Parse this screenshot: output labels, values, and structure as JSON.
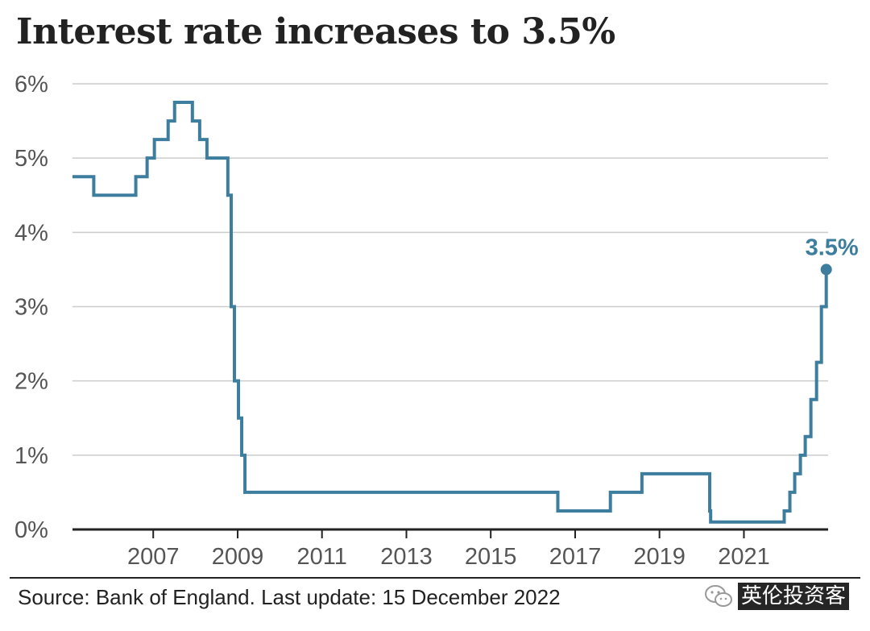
{
  "title": "Interest rate increases to 3.5%",
  "source": "Source: Bank of England. Last update: 15 December 2022",
  "watermark": "英伦投资客",
  "colors": {
    "line": "#3d7d9e",
    "grid": "#cccccc",
    "axis": "#222222",
    "tick_text": "#555555"
  },
  "chart_data": {
    "type": "line",
    "title": "Interest rate increases to 3.5%",
    "xlabel": "",
    "ylabel": "",
    "step": true,
    "xlim": [
      "2005-02-01",
      "2022-12-31"
    ],
    "ylim": [
      0,
      6
    ],
    "y_ticks": [
      0,
      1,
      2,
      3,
      4,
      5,
      6
    ],
    "y_tick_labels": [
      "0%",
      "1%",
      "2%",
      "3%",
      "4%",
      "5%",
      "6%"
    ],
    "x_ticks": [
      "2007-01-01",
      "2009-01-01",
      "2011-01-01",
      "2013-01-01",
      "2015-01-01",
      "2017-01-01",
      "2019-01-01",
      "2021-01-01"
    ],
    "x_tick_labels": [
      "2007",
      "2009",
      "2011",
      "2013",
      "2015",
      "2017",
      "2019",
      "2021"
    ],
    "grid": true,
    "legend": "none",
    "series": [
      {
        "x": [
          "2005-02-01",
          "2005-08-04",
          "2006-08-03",
          "2006-11-09",
          "2007-01-11",
          "2007-05-10",
          "2007-07-05",
          "2007-12-06",
          "2008-02-07",
          "2008-04-10",
          "2008-10-08",
          "2008-11-06",
          "2008-12-04",
          "2009-01-08",
          "2009-02-05",
          "2009-03-05",
          "2016-08-04",
          "2017-11-02",
          "2018-08-02",
          "2020-03-11",
          "2020-03-19",
          "2021-12-16",
          "2022-02-03",
          "2022-03-17",
          "2022-05-05",
          "2022-06-16",
          "2022-08-04",
          "2022-09-22",
          "2022-11-03",
          "2022-12-15"
        ],
        "values": [
          4.75,
          4.5,
          4.75,
          5.0,
          5.25,
          5.5,
          5.75,
          5.5,
          5.25,
          5.0,
          4.5,
          3.0,
          2.0,
          1.5,
          1.0,
          0.5,
          0.25,
          0.5,
          0.75,
          0.25,
          0.1,
          0.25,
          0.5,
          0.75,
          1.0,
          1.25,
          1.75,
          2.25,
          3.0,
          3.5
        ]
      }
    ],
    "annotations": [
      {
        "x": "2022-12-15",
        "y": 3.5,
        "text": "3.5%"
      }
    ]
  }
}
